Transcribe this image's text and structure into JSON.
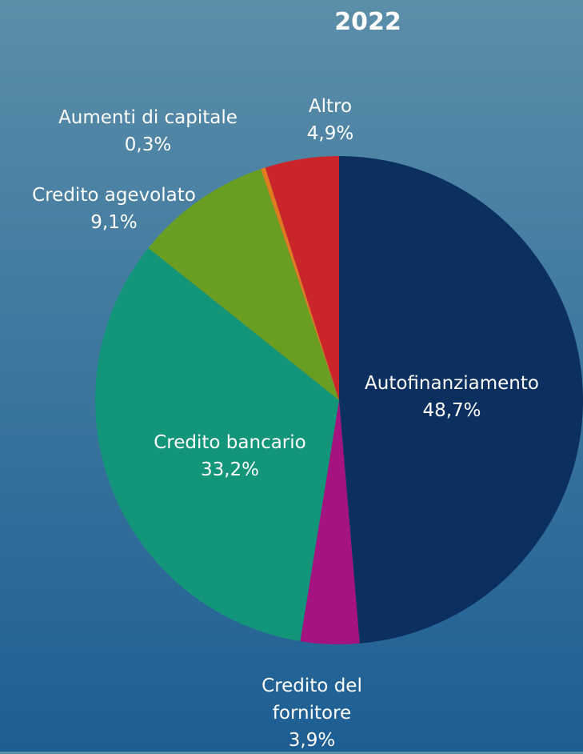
{
  "chart_data": {
    "type": "pie",
    "title": "2022",
    "categories": [
      "Autofinanziamento",
      "Credito del fornitore",
      "Credito bancario",
      "Credito agevolato",
      "Aumenti di capitale",
      "Altro"
    ],
    "values": [
      48.7,
      3.9,
      33.2,
      9.1,
      0.3,
      4.9
    ],
    "value_labels": [
      "48,7%",
      "3,9%",
      "33,2%",
      "9,1%",
      "0,3%",
      "4,9%"
    ],
    "colors": [
      "#0b2f5f",
      "#a4137f",
      "#13957a",
      "#6a9e22",
      "#e07b1f",
      "#c9252b"
    ]
  }
}
